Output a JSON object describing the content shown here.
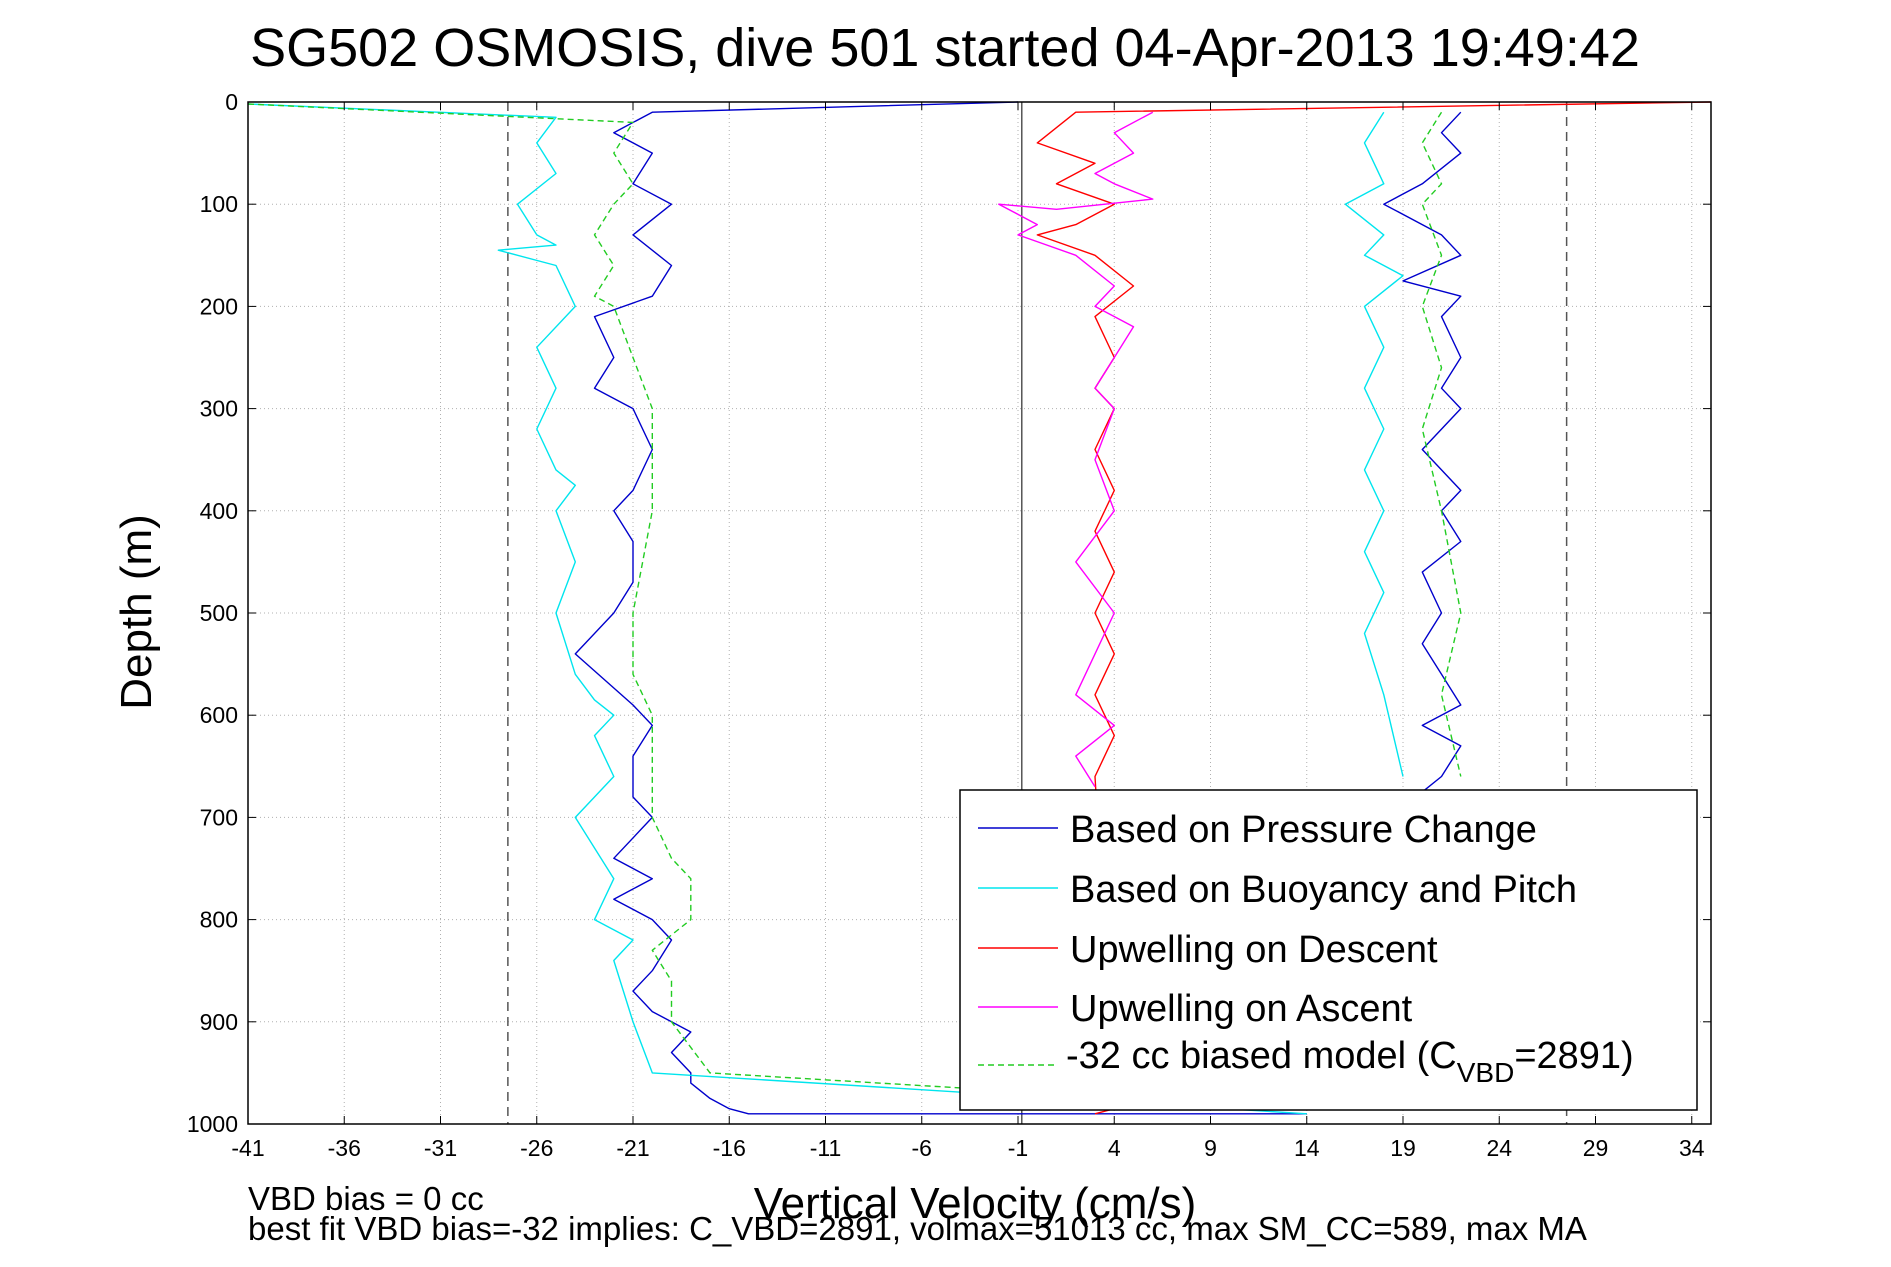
{
  "chart_data": {
    "type": "line",
    "title": "SG502 OSMOSIS, dive 501 started 04-Apr-2013 19:49:42",
    "xlabel": "Vertical Velocity (cm/s)",
    "ylabel": "Depth (m)",
    "xlim": [
      -41,
      35
    ],
    "ylim": [
      0,
      1000
    ],
    "y_reversed": true,
    "x_ticks": [
      -41,
      -36,
      -31,
      -26,
      -21,
      -16,
      -11,
      -6,
      -1,
      4,
      9,
      14,
      19,
      24,
      29,
      34
    ],
    "y_ticks": [
      0,
      100,
      200,
      300,
      400,
      500,
      600,
      700,
      800,
      900,
      1000
    ],
    "grid": true,
    "legend_position": "bottom-right",
    "reference_lines": {
      "dashed_x": [
        -27.5,
        27.5
      ],
      "solid_x": [
        -0.8
      ]
    },
    "series": [
      {
        "name": "Based on Pressure Change",
        "color": "#0000cc",
        "style": "solid",
        "groups": [
          {
            "x": [
              -1,
              -20,
              -22,
              -20,
              -21,
              -19,
              -21,
              -19,
              -20,
              -23,
              -22,
              -23,
              -21,
              -20,
              -21,
              -22,
              -21,
              -21,
              -22,
              -24,
              -21,
              -20,
              -21,
              -21,
              -20,
              -22,
              -20,
              -22,
              -20,
              -19,
              -20,
              -21,
              -20,
              -18,
              -19,
              -18,
              -18,
              -17,
              -16,
              -15,
              14
            ],
            "y": [
              0,
              10,
              30,
              50,
              80,
              100,
              130,
              160,
              190,
              210,
              250,
              280,
              300,
              340,
              380,
              400,
              430,
              470,
              500,
              540,
              590,
              610,
              640,
              680,
              700,
              740,
              760,
              780,
              800,
              820,
              850,
              870,
              890,
              910,
              930,
              950,
              960,
              975,
              985,
              990,
              990
            ]
          },
          {
            "x": [
              22,
              21,
              22,
              20,
              18,
              21,
              22,
              19,
              22,
              21,
              22,
              21,
              22,
              20,
              22,
              21,
              22,
              20,
              21,
              20,
              21,
              22,
              20,
              22,
              21,
              20
            ],
            "y": [
              10,
              30,
              50,
              80,
              100,
              130,
              150,
              175,
              190,
              210,
              250,
              280,
              300,
              340,
              380,
              400,
              430,
              460,
              500,
              530,
              560,
              590,
              610,
              630,
              660,
              675
            ]
          }
        ]
      },
      {
        "name": "Based on Buoyancy and Pitch",
        "color": "#00e5ee",
        "style": "solid",
        "groups": [
          {
            "x": [
              -41,
              -25,
              -26,
              -25,
              -27,
              -26,
              -25,
              -28,
              -25,
              -24,
              -26,
              -25,
              -26,
              -25,
              -24,
              -25,
              -24,
              -25,
              -24,
              -23,
              -22,
              -23,
              -22,
              -24,
              -22,
              -23,
              -21,
              -22,
              -21,
              -20,
              14
            ],
            "y": [
              2,
              15,
              40,
              70,
              100,
              130,
              140,
              145,
              160,
              200,
              240,
              280,
              320,
              360,
              375,
              400,
              450,
              500,
              560,
              585,
              600,
              620,
              660,
              700,
              760,
              800,
              820,
              840,
              900,
              950,
              990
            ]
          },
          {
            "x": [
              18,
              17,
              18,
              16,
              18,
              17,
              19,
              17,
              18,
              17,
              18,
              17,
              18,
              17,
              18,
              17,
              18,
              19
            ],
            "y": [
              10,
              40,
              80,
              100,
              130,
              150,
              170,
              200,
              240,
              280,
              320,
              360,
              400,
              440,
              480,
              520,
              580,
              660
            ]
          }
        ]
      },
      {
        "name": "Upwelling on Descent",
        "color": "#ff0000",
        "style": "solid",
        "groups": [
          {
            "x": [
              35,
              2,
              0,
              3,
              1,
              4,
              2,
              0,
              3,
              5,
              3,
              4,
              3,
              4,
              3,
              4,
              3,
              4,
              3,
              4,
              3,
              4,
              3,
              4,
              3
            ],
            "y": [
              0,
              10,
              40,
              60,
              80,
              100,
              120,
              130,
              150,
              180,
              210,
              250,
              280,
              300,
              340,
              380,
              420,
              460,
              500,
              540,
              580,
              620,
              660,
              985,
              990
            ]
          }
        ]
      },
      {
        "name": "Upwelling on Ascent",
        "color": "#ff00ff",
        "style": "solid",
        "groups": [
          {
            "x": [
              6,
              4,
              5,
              3,
              4,
              6,
              1,
              -2,
              0,
              -1,
              2,
              4,
              3,
              5,
              4,
              3,
              4,
              3,
              4,
              2,
              4,
              3,
              2,
              4,
              2,
              3
            ],
            "y": [
              10,
              30,
              50,
              70,
              80,
              95,
              105,
              100,
              120,
              130,
              150,
              180,
              200,
              220,
              250,
              280,
              300,
              350,
              400,
              450,
              500,
              540,
              580,
              610,
              640,
              670
            ]
          }
        ]
      },
      {
        "name": "-32 cc biased model (C_VBD=2891)",
        "color": "#22cc22",
        "style": "dashed",
        "groups": [
          {
            "x": [
              -41,
              -21,
              -22,
              -21,
              -22,
              -23,
              -22,
              -23,
              -22,
              -21,
              -20,
              -20,
              -21,
              -21,
              -20,
              -20,
              -19,
              -18,
              -18,
              -20,
              -19,
              -19,
              -17,
              14
            ],
            "y": [
              2,
              20,
              50,
              80,
              100,
              130,
              160,
              190,
              200,
              250,
              300,
              400,
              500,
              560,
              600,
              700,
              740,
              760,
              800,
              830,
              860,
              900,
              950,
              985
            ]
          },
          {
            "x": [
              21,
              20,
              21,
              20,
              21,
              20,
              21,
              20,
              21,
              22,
              21,
              22
            ],
            "y": [
              10,
              40,
              80,
              100,
              150,
              200,
              260,
              320,
              400,
              500,
              580,
              660
            ]
          }
        ]
      }
    ],
    "legend_entries": [
      "Based on Pressure Change",
      "Based on Buoyancy and Pitch",
      "Upwelling on Descent",
      "Upwelling on Ascent",
      "-32 cc biased model (C",
      "VBD",
      "=2891)"
    ],
    "annotations": {
      "line1": "VBD bias = 0 cc",
      "line2": "best fit VBD bias=-32 implies: C_VBD=2891, volmax=51013 cc, max SM_CC=589, max MA"
    }
  }
}
